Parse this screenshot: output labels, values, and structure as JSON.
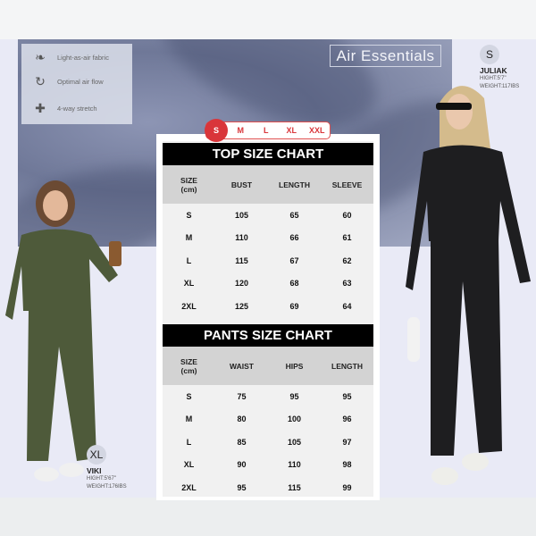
{
  "features": [
    {
      "icon": "feather-icon",
      "label": "Light-as-air fabric"
    },
    {
      "icon": "airflow-icon",
      "label": "Optimal air flow"
    },
    {
      "icon": "stretch-icon",
      "label": "4-way stretch"
    }
  ],
  "brand": "Air Essentials",
  "size_selector": {
    "options": [
      "S",
      "M",
      "L",
      "XL",
      "XXL"
    ],
    "selected": "S",
    "accent": "#d9353a"
  },
  "top_chart": {
    "title": "TOP SIZE CHART",
    "headers": [
      "SIZE\n(cm)",
      "BUST",
      "LENGTH",
      "SLEEVE"
    ],
    "rows": [
      [
        "S",
        "105",
        "65",
        "60"
      ],
      [
        "M",
        "110",
        "66",
        "61"
      ],
      [
        "L",
        "115",
        "67",
        "62"
      ],
      [
        "XL",
        "120",
        "68",
        "63"
      ],
      [
        "2XL",
        "125",
        "69",
        "64"
      ]
    ]
  },
  "pants_chart": {
    "title": "PANTS SIZE CHART",
    "headers": [
      "SIZE\n(cm)",
      "WAIST",
      "HIPS",
      "LENGTH"
    ],
    "rows": [
      [
        "S",
        "75",
        "95",
        "95"
      ],
      [
        "M",
        "80",
        "100",
        "96"
      ],
      [
        "L",
        "85",
        "105",
        "97"
      ],
      [
        "XL",
        "90",
        "110",
        "98"
      ],
      [
        "2XL",
        "95",
        "115",
        "99"
      ]
    ]
  },
  "model_left": {
    "size": "XL",
    "name": "VIKI",
    "height": "HIGHT:5'67\"",
    "weight": "WEIGHT:176IBS",
    "color": "#4e5a3a"
  },
  "model_right": {
    "size": "S",
    "name": "JULIAK",
    "height": "HIGHT:5'7\"",
    "weight": "WEIGHT:117IBS",
    "color": "#1e1e20"
  }
}
